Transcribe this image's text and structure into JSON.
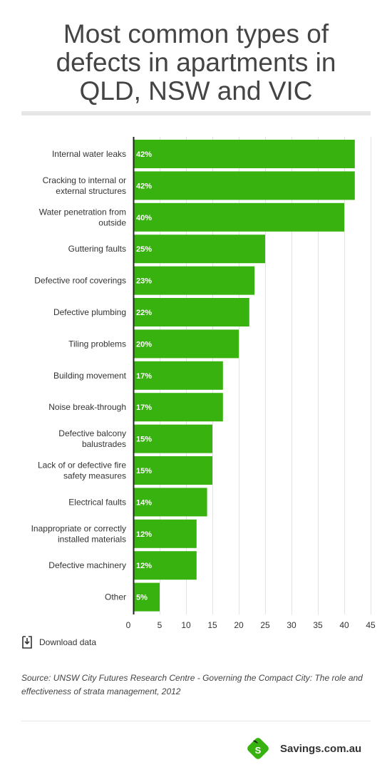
{
  "title_lines": [
    "Most common types of",
    "defects in apartments in",
    "QLD, NSW and VIC"
  ],
  "chart_data": {
    "type": "bar",
    "orientation": "horizontal",
    "categories": [
      "Internal water leaks",
      "Cracking to internal or external structures",
      "Water penetration from outside",
      "Guttering faults",
      "Defective roof coverings",
      "Defective plumbing",
      "Tiling problems",
      "Building movement",
      "Noise break-through",
      "Defective balcony balustrades",
      "Lack of or defective fire safety measures",
      "Electrical faults",
      "Inappropriate or correctly installed materials",
      "Defective machinery",
      "Other"
    ],
    "category_lines": [
      [
        "Internal water leaks"
      ],
      [
        "Cracking to internal or",
        "external structures"
      ],
      [
        "Water penetration from",
        "outside"
      ],
      [
        "Guttering faults"
      ],
      [
        "Defective roof coverings"
      ],
      [
        "Defective plumbing"
      ],
      [
        "Tiling problems"
      ],
      [
        "Building movement"
      ],
      [
        "Noise break-through"
      ],
      [
        "Defective balcony",
        "balustrades"
      ],
      [
        "Lack of or defective fire",
        "safety measures"
      ],
      [
        "Electrical faults"
      ],
      [
        "Inappropriate or correctly",
        "installed materials"
      ],
      [
        "Defective machinery"
      ],
      [
        "Other"
      ]
    ],
    "values": [
      42,
      42,
      40,
      25,
      23,
      22,
      20,
      17,
      17,
      15,
      15,
      14,
      12,
      12,
      5
    ],
    "value_labels": [
      "42%",
      "42%",
      "40%",
      "25%",
      "23%",
      "22%",
      "20%",
      "17%",
      "17%",
      "15%",
      "15%",
      "14%",
      "12%",
      "12%",
      "5%"
    ],
    "xticks": [
      0,
      5,
      10,
      15,
      20,
      25,
      30,
      35,
      40,
      45
    ],
    "xlim": [
      0,
      45
    ],
    "bar_color": "#38b20e",
    "grid": true
  },
  "download_label": "Download data",
  "source_text": "Source: UNSW City Futures Research Centre - Governing the Compact City: The role and effectiveness of strata management, 2012",
  "brand": {
    "name": "Savings.com.au",
    "logo_letter": "S",
    "logo_color": "#38b20e"
  }
}
